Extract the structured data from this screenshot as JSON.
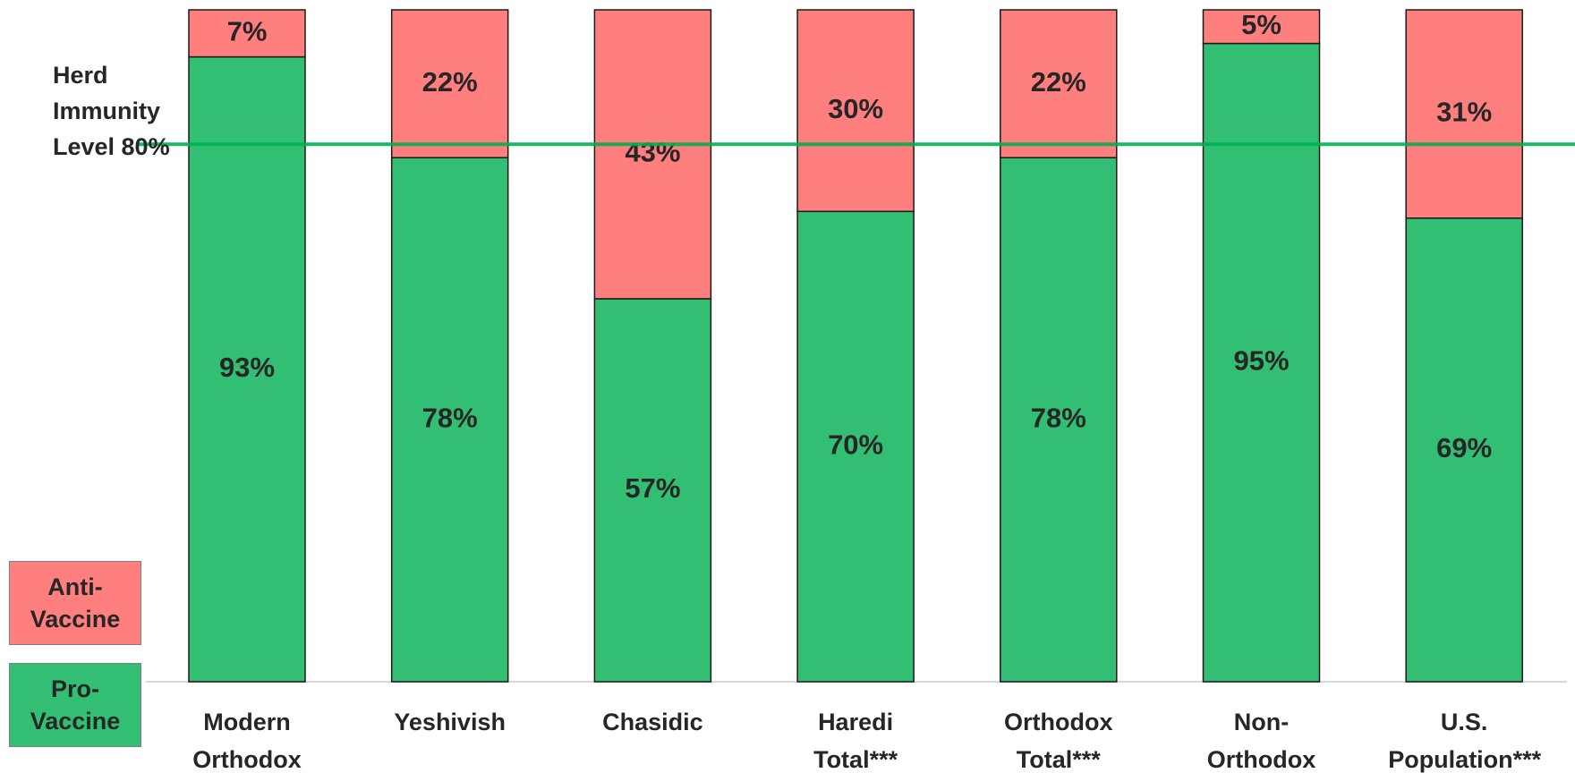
{
  "chart_data": {
    "type": "stacked_bar",
    "categories": [
      "Modern Orthodox",
      "Yeshivish",
      "Chasidic",
      "Haredi Total***",
      "Orthodox Total***",
      "Non-Orthodox",
      "U.S. Population***"
    ],
    "series": [
      {
        "name": "Pro-Vaccine",
        "color": "#33bf73",
        "values": [
          93,
          78,
          57,
          70,
          78,
          95,
          69
        ],
        "value_labels": [
          "93%",
          "78%",
          "57%",
          "70%",
          "78%",
          "95%",
          "69%"
        ]
      },
      {
        "name": "Anti-Vaccine",
        "color": "#ff7f7f",
        "values": [
          7,
          22,
          43,
          30,
          22,
          5,
          31
        ],
        "value_labels": [
          "7%",
          "22%",
          "43%",
          "30%",
          "22%",
          "5%",
          "31%"
        ]
      }
    ],
    "ylim": [
      0,
      100
    ],
    "reference_line": {
      "value": 80,
      "label": "Herd Immunity Level 80%",
      "color": "#00b050"
    }
  }
}
